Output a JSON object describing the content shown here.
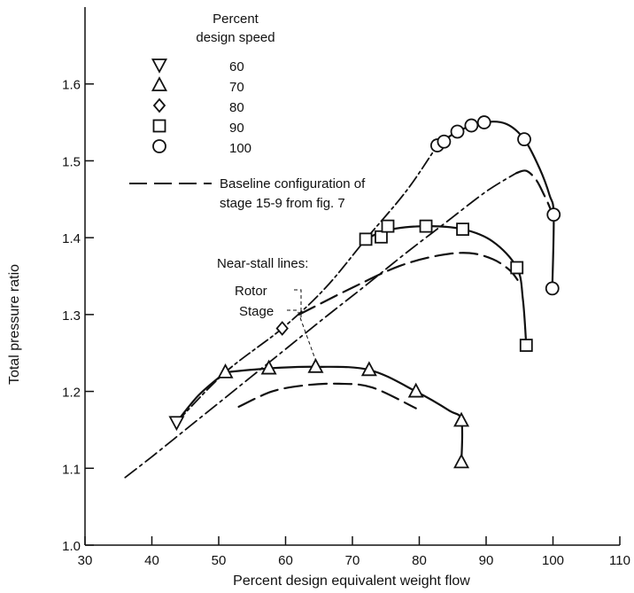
{
  "chart_data": {
    "type": "line",
    "title": "",
    "xlabel": "Percent design equivalent weight flow",
    "ylabel": "Total pressure ratio",
    "xlim": [
      30,
      110
    ],
    "ylim": [
      1.0,
      1.7
    ],
    "xticks": [
      "30",
      "40",
      "50",
      "60",
      "70",
      "80",
      "90",
      "100",
      "110"
    ],
    "yticks": [
      "1.0",
      "1.1",
      "1.2",
      "1.3",
      "1.4",
      "1.5",
      "1.6"
    ],
    "legend": {
      "title_line1": "Percent",
      "title_line2": "design speed",
      "markers": [
        {
          "symbol": "triangle-down",
          "label": "60"
        },
        {
          "symbol": "triangle-up",
          "label": "70"
        },
        {
          "symbol": "diamond",
          "label": "80"
        },
        {
          "symbol": "square",
          "label": "90"
        },
        {
          "symbol": "circle",
          "label": "100"
        }
      ],
      "baseline_line1": "Baseline configuration of",
      "baseline_line2": "stage 15-9 from fig. 7"
    },
    "annotations": {
      "near_stall_title": "Near-stall lines:",
      "rotor_label": "Rotor",
      "stage_label": "Stage"
    },
    "series": [
      {
        "name": "60",
        "marker": "triangle-down",
        "x": [
          43.7
        ],
        "y": [
          1.16
        ]
      },
      {
        "name": "70",
        "marker": "triangle-up",
        "x": [
          51,
          57.5,
          64.5,
          72.5,
          79.5,
          86.3,
          86.3
        ],
        "y": [
          1.225,
          1.23,
          1.232,
          1.228,
          1.2,
          1.162,
          1.108
        ]
      },
      {
        "name": "80",
        "marker": "diamond",
        "x": [
          59.5
        ],
        "y": [
          1.282
        ]
      },
      {
        "name": "90",
        "marker": "square",
        "x": [
          72,
          74.3,
          75.3,
          81,
          86.5,
          94.6,
          96
        ],
        "y": [
          1.398,
          1.401,
          1.415,
          1.415,
          1.411,
          1.361,
          1.26
        ]
      },
      {
        "name": "100",
        "marker": "circle",
        "x": [
          82.7,
          83.7,
          85.7,
          87.8,
          89.7,
          95.7,
          100.1,
          99.9
        ],
        "y": [
          1.52,
          1.525,
          1.538,
          1.546,
          1.55,
          1.528,
          1.43,
          1.334
        ]
      }
    ],
    "curves": {
      "speed_60_to_70": {
        "x": [
          43.7,
          47,
          51
        ],
        "y": [
          1.16,
          1.195,
          1.225
        ]
      },
      "speed_70": {
        "x": [
          51,
          57.5,
          64.5,
          72.5,
          79.5,
          84.5,
          86.3,
          86.3
        ],
        "y": [
          1.225,
          1.23,
          1.232,
          1.228,
          1.2,
          1.175,
          1.162,
          1.108
        ]
      },
      "speed_90": {
        "x": [
          72,
          75.3,
          81,
          86.5,
          91,
          94.6,
          95.5,
          96
        ],
        "y": [
          1.398,
          1.41,
          1.415,
          1.411,
          1.395,
          1.361,
          1.32,
          1.26
        ]
      },
      "speed_100": {
        "x": [
          82.7,
          85.7,
          89.7,
          93,
          95.7,
          98,
          99.5,
          100.1,
          99.9
        ],
        "y": [
          1.52,
          1.538,
          1.55,
          1.548,
          1.528,
          1.49,
          1.455,
          1.43,
          1.334
        ]
      },
      "rotor_near_stall": {
        "x": [
          43.7,
          51,
          59.5,
          66,
          72,
          78,
          82.7
        ],
        "y": [
          1.16,
          1.225,
          1.282,
          1.335,
          1.398,
          1.46,
          1.52
        ]
      },
      "baseline_70": {
        "x": [
          53,
          58,
          63,
          68,
          73,
          79.5
        ],
        "y": [
          1.18,
          1.2,
          1.208,
          1.21,
          1.205,
          1.178
        ]
      },
      "baseline_90": {
        "x": [
          62,
          70,
          77,
          83,
          87.5,
          91,
          93.5,
          94.7
        ],
        "y": [
          1.3,
          1.335,
          1.363,
          1.377,
          1.38,
          1.372,
          1.358,
          1.345
        ]
      },
      "baseline_100": {
        "x": [
          94.5,
          96,
          97.5,
          98.7,
          99.5,
          99.9
        ],
        "y": [
          1.484,
          1.487,
          1.475,
          1.455,
          1.44,
          1.43
        ]
      },
      "stage_near_stall": {
        "x": [
          36,
          40,
          45,
          50,
          55,
          60,
          66,
          72,
          78,
          84,
          90,
          94.5
        ],
        "y": [
          1.088,
          1.115,
          1.15,
          1.185,
          1.22,
          1.255,
          1.297,
          1.338,
          1.38,
          1.42,
          1.46,
          1.484
        ]
      }
    }
  }
}
